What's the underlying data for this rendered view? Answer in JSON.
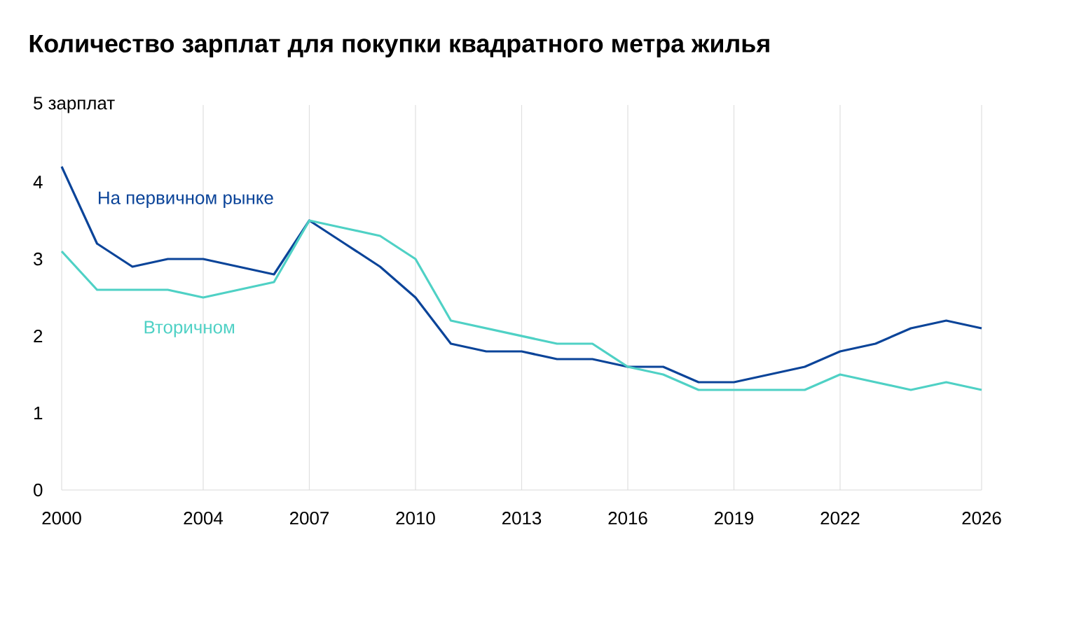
{
  "chart_data": {
    "type": "line",
    "title": "Количество зарплат для покупки квадратного метра жилья",
    "x": [
      2000,
      2001,
      2002,
      2003,
      2004,
      2005,
      2006,
      2007,
      2008,
      2009,
      2010,
      2011,
      2012,
      2013,
      2014,
      2015,
      2016,
      2017,
      2018,
      2019,
      2020,
      2021,
      2022,
      2023,
      2024,
      2025,
      2026
    ],
    "series": [
      {
        "name": "На первичном рынке",
        "color": "#0b4499",
        "values": [
          4.2,
          3.2,
          2.9,
          3.0,
          3.0,
          2.9,
          2.8,
          3.5,
          3.2,
          2.9,
          2.5,
          1.9,
          1.8,
          1.8,
          1.7,
          1.7,
          1.6,
          1.6,
          1.4,
          1.4,
          1.5,
          1.6,
          1.8,
          1.9,
          2.1,
          2.2,
          2.1
        ]
      },
      {
        "name": "Вторичном",
        "color": "#4fd1c5",
        "values": [
          3.1,
          2.6,
          2.6,
          2.6,
          2.5,
          2.6,
          2.7,
          3.5,
          3.4,
          3.3,
          3.0,
          2.2,
          2.1,
          2.0,
          1.9,
          1.9,
          1.6,
          1.5,
          1.3,
          1.3,
          1.3,
          1.3,
          1.5,
          1.4,
          1.3,
          1.4,
          1.3
        ]
      }
    ],
    "xlim": [
      2000,
      2026
    ],
    "xticks": [
      2000,
      2004,
      2007,
      2010,
      2013,
      2016,
      2019,
      2022,
      2026
    ],
    "ylim": [
      0,
      5
    ],
    "yticks": [
      0,
      1,
      2,
      3,
      4,
      {
        "value": 5,
        "label": "5 зарплат"
      }
    ],
    "grid": "x"
  }
}
